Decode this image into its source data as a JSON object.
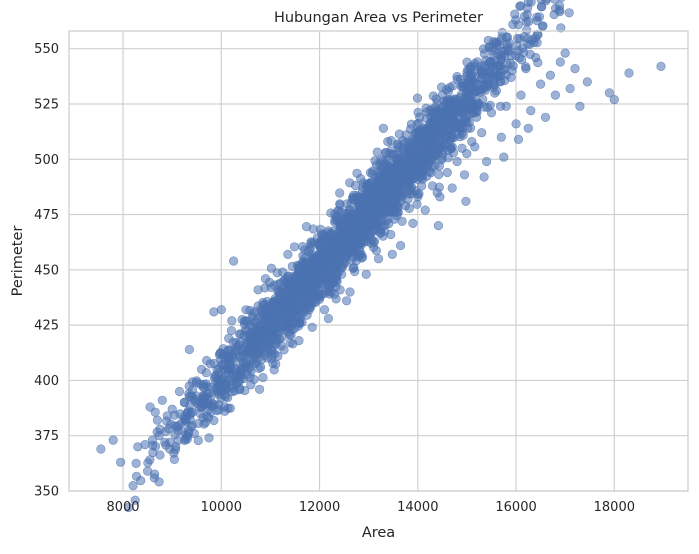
{
  "chart_data": {
    "type": "scatter",
    "title": "Hubungan Area vs Perimeter",
    "xlabel": "Area",
    "ylabel": "Perimeter",
    "xlim": [
      6900,
      19500
    ],
    "ylim": [
      350,
      558
    ],
    "xticks": [
      8000,
      10000,
      12000,
      14000,
      16000,
      18000
    ],
    "yticks": [
      350,
      375,
      400,
      425,
      450,
      475,
      500,
      525,
      550
    ],
    "grid": true,
    "legend": "none",
    "colors": {
      "point": "#4c72b0",
      "grid": "#d0d0d0",
      "background": "#ffffff",
      "spine": "#cccccc"
    },
    "point_alpha": 0.55,
    "points": [
      [
        7550,
        369
      ],
      [
        7800,
        373
      ],
      [
        7950,
        363
      ],
      [
        8300,
        370
      ],
      [
        8450,
        371
      ],
      [
        8500,
        359
      ],
      [
        8550,
        388
      ],
      [
        8600,
        373
      ],
      [
        8700,
        382
      ],
      [
        8750,
        378
      ],
      [
        8800,
        391
      ],
      [
        8850,
        372
      ],
      [
        8900,
        384
      ],
      [
        8950,
        369
      ],
      [
        9000,
        387
      ],
      [
        9100,
        379
      ],
      [
        9150,
        395
      ],
      [
        9200,
        381
      ],
      [
        9250,
        390
      ],
      [
        9300,
        385
      ],
      [
        9350,
        414
      ],
      [
        9400,
        393
      ],
      [
        9450,
        376
      ],
      [
        9500,
        399
      ],
      [
        9550,
        388
      ],
      [
        9600,
        405
      ],
      [
        9650,
        392
      ],
      [
        9700,
        409
      ],
      [
        9750,
        374
      ],
      [
        9800,
        397
      ],
      [
        9850,
        431
      ],
      [
        9900,
        402
      ],
      [
        9950,
        389
      ],
      [
        10000,
        432
      ],
      [
        10050,
        411
      ],
      [
        10100,
        396
      ],
      [
        10150,
        419
      ],
      [
        10200,
        405
      ],
      [
        10250,
        454
      ],
      [
        10300,
        414
      ],
      [
        10350,
        399
      ],
      [
        10400,
        421
      ],
      [
        10450,
        408
      ],
      [
        10500,
        427
      ],
      [
        10550,
        412
      ],
      [
        10600,
        398
      ],
      [
        10650,
        430
      ],
      [
        10700,
        418
      ],
      [
        10750,
        441
      ],
      [
        10800,
        406
      ],
      [
        10850,
        425
      ],
      [
        10900,
        446
      ],
      [
        10950,
        415
      ],
      [
        11000,
        432
      ],
      [
        11050,
        421
      ],
      [
        11100,
        437
      ],
      [
        11150,
        411
      ],
      [
        11200,
        428
      ],
      [
        11250,
        449
      ],
      [
        11300,
        423
      ],
      [
        11350,
        439
      ],
      [
        11400,
        417
      ],
      [
        11450,
        444
      ],
      [
        11500,
        431
      ],
      [
        11550,
        452
      ],
      [
        11600,
        426
      ],
      [
        11650,
        441
      ],
      [
        11700,
        459
      ],
      [
        11750,
        435
      ],
      [
        11800,
        448
      ],
      [
        11850,
        424
      ],
      [
        11900,
        455
      ],
      [
        11950,
        439
      ],
      [
        12000,
        461
      ],
      [
        12050,
        444
      ],
      [
        12100,
        432
      ],
      [
        12150,
        458
      ],
      [
        12200,
        447
      ],
      [
        12250,
        466
      ],
      [
        12300,
        439
      ],
      [
        12350,
        455
      ],
      [
        12400,
        471
      ],
      [
        12450,
        448
      ],
      [
        12500,
        462
      ],
      [
        12550,
        436
      ],
      [
        12600,
        458
      ],
      [
        12650,
        474
      ],
      [
        12700,
        451
      ],
      [
        12750,
        466
      ],
      [
        12800,
        483
      ],
      [
        12850,
        457
      ],
      [
        12900,
        471
      ],
      [
        12950,
        448
      ],
      [
        13000,
        478
      ],
      [
        13050,
        462
      ],
      [
        13100,
        487
      ],
      [
        13150,
        468
      ],
      [
        13200,
        455
      ],
      [
        13250,
        481
      ],
      [
        13300,
        514
      ],
      [
        13350,
        472
      ],
      [
        13400,
        489
      ],
      [
        13450,
        466
      ],
      [
        13500,
        484
      ],
      [
        13550,
        497
      ],
      [
        13600,
        476
      ],
      [
        13650,
        461
      ],
      [
        13700,
        492
      ],
      [
        13750,
        479
      ],
      [
        13800,
        504
      ],
      [
        13850,
        486
      ],
      [
        13900,
        471
      ],
      [
        13950,
        497
      ],
      [
        14000,
        483
      ],
      [
        14050,
        508
      ],
      [
        14100,
        491
      ],
      [
        14150,
        477
      ],
      [
        14200,
        502
      ],
      [
        14250,
        515
      ],
      [
        14300,
        488
      ],
      [
        14350,
        497
      ],
      [
        14400,
        511
      ],
      [
        14450,
        483
      ],
      [
        14500,
        504
      ],
      [
        14550,
        519
      ],
      [
        14600,
        494
      ],
      [
        14650,
        509
      ],
      [
        14700,
        487
      ],
      [
        14750,
        514
      ],
      [
        14800,
        499
      ],
      [
        14850,
        522
      ],
      [
        14900,
        505
      ],
      [
        14950,
        493
      ],
      [
        15000,
        517
      ],
      [
        15100,
        508
      ],
      [
        15200,
        526
      ],
      [
        15300,
        512
      ],
      [
        15400,
        499
      ],
      [
        15500,
        521
      ],
      [
        15600,
        531
      ],
      [
        15700,
        510
      ],
      [
        15800,
        524
      ],
      [
        15900,
        537
      ],
      [
        16000,
        516
      ],
      [
        16100,
        529
      ],
      [
        16200,
        541
      ],
      [
        16300,
        522
      ],
      [
        16400,
        546
      ],
      [
        16500,
        534
      ],
      [
        16600,
        519
      ],
      [
        16700,
        538
      ],
      [
        16800,
        529
      ],
      [
        16900,
        544
      ],
      [
        17000,
        548
      ],
      [
        17100,
        532
      ],
      [
        17200,
        541
      ],
      [
        17300,
        524
      ],
      [
        17450,
        535
      ],
      [
        17900,
        530
      ],
      [
        18000,
        527
      ],
      [
        18300,
        539
      ],
      [
        18950,
        542
      ],
      [
        16050,
        509
      ],
      [
        15750,
        501
      ],
      [
        14980,
        481
      ],
      [
        13880,
        501
      ],
      [
        12620,
        440
      ],
      [
        11580,
        418
      ],
      [
        10780,
        396
      ],
      [
        9680,
        381
      ],
      [
        11020,
        410
      ],
      [
        12180,
        428
      ],
      [
        13480,
        457
      ],
      [
        14420,
        470
      ],
      [
        15350,
        492
      ],
      [
        16250,
        514
      ]
    ]
  }
}
